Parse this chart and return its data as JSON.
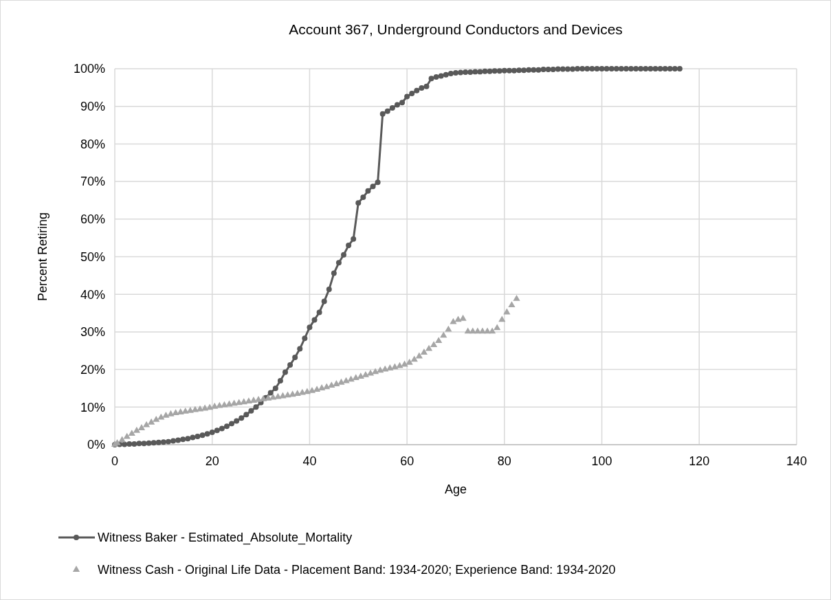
{
  "chart_data": {
    "type": "line",
    "title": "Account 367, Underground Conductors and Devices",
    "xlabel": "Age",
    "ylabel": "Percent Retiring",
    "xlim": [
      0,
      140
    ],
    "xticks": [
      0,
      20,
      40,
      60,
      80,
      100,
      120,
      140
    ],
    "ylim": [
      0,
      100
    ],
    "yticks": [
      {
        "value": 0,
        "label": "0%"
      },
      {
        "value": 10,
        "label": "10%"
      },
      {
        "value": 20,
        "label": "20%"
      },
      {
        "value": 30,
        "label": "30%"
      },
      {
        "value": 40,
        "label": "40%"
      },
      {
        "value": 50,
        "label": "50%"
      },
      {
        "value": 60,
        "label": "60%"
      },
      {
        "value": 70,
        "label": "70%"
      },
      {
        "value": 80,
        "label": "80%"
      },
      {
        "value": 90,
        "label": "90%"
      },
      {
        "value": 100,
        "label": "100%"
      }
    ],
    "grid": true,
    "legend": "bottom",
    "series": [
      {
        "name": "Witness Baker - Estimated_Absolute_Mortality",
        "type": "line",
        "marker": "circle",
        "line_style": "solid",
        "color": "#595959",
        "x": [
          0,
          1,
          2,
          3,
          4,
          5,
          6,
          7,
          8,
          9,
          10,
          11,
          12,
          13,
          14,
          15,
          16,
          17,
          18,
          19,
          20,
          21,
          22,
          23,
          24,
          25,
          26,
          27,
          28,
          29,
          30,
          31,
          32,
          33,
          34,
          35,
          36,
          37,
          38,
          39,
          40,
          41,
          42,
          43,
          44,
          45,
          46,
          47,
          48,
          49,
          50,
          51,
          52,
          53,
          54,
          55,
          56,
          57,
          58,
          59,
          60,
          61,
          62,
          63,
          64,
          65,
          66,
          67,
          68,
          69,
          70,
          71,
          72,
          73,
          74,
          75,
          76,
          77,
          78,
          79,
          80,
          81,
          82,
          83,
          84,
          85,
          86,
          87,
          88,
          89,
          90,
          91,
          92,
          93,
          94,
          95,
          96,
          97,
          98,
          99,
          100,
          101,
          102,
          103,
          104,
          105,
          106,
          107,
          108,
          109,
          110,
          111,
          112,
          113,
          114,
          115,
          116
        ],
        "values": [
          0,
          0.1,
          0.1,
          0.2,
          0.2,
          0.3,
          0.3,
          0.4,
          0.5,
          0.6,
          0.7,
          0.8,
          1.0,
          1.2,
          1.4,
          1.6,
          1.9,
          2.2,
          2.5,
          2.9,
          3.3,
          3.8,
          4.3,
          4.9,
          5.6,
          6.3,
          7.1,
          8.0,
          9.0,
          10.0,
          11.2,
          12.5,
          13.8,
          15.0,
          17.0,
          19.3,
          21.2,
          23.2,
          25.5,
          28.3,
          31.2,
          33.2,
          35.2,
          38.1,
          41.3,
          45.6,
          48.4,
          50.5,
          53.0,
          54.7,
          64.3,
          65.8,
          67.5,
          68.7,
          69.8,
          88.0,
          88.7,
          89.6,
          90.4,
          91.0,
          92.6,
          93.4,
          94.2,
          94.9,
          95.3,
          97.4,
          97.8,
          98.1,
          98.4,
          98.7,
          98.9,
          99.0,
          99.1,
          99.1,
          99.2,
          99.2,
          99.3,
          99.3,
          99.4,
          99.4,
          99.5,
          99.5,
          99.5,
          99.6,
          99.6,
          99.7,
          99.7,
          99.7,
          99.8,
          99.8,
          99.8,
          99.9,
          99.9,
          99.9,
          99.9,
          100,
          100,
          100,
          100,
          100,
          100,
          100,
          100,
          100,
          100,
          100,
          100,
          100,
          100,
          100,
          100,
          100,
          100,
          100,
          100,
          100,
          100
        ]
      },
      {
        "name": "Witness Cash - Original Life Data - Placement Band: 1934-2020; Experience Band: 1934-2020",
        "type": "scatter",
        "marker": "triangle",
        "color": "#a6a6a6",
        "x": [
          0,
          0.5,
          1.5,
          2.5,
          3.5,
          4.5,
          5.5,
          6.5,
          7.5,
          8.5,
          9.5,
          10.5,
          11.5,
          12.5,
          13.5,
          14.5,
          15.5,
          16.5,
          17.5,
          18.5,
          19.5,
          20.5,
          21.5,
          22.5,
          23.5,
          24.5,
          25.5,
          26.5,
          27.5,
          28.5,
          29.5,
          30.5,
          31.5,
          32.5,
          33.5,
          34.5,
          35.5,
          36.5,
          37.5,
          38.5,
          39.5,
          40.5,
          41.5,
          42.5,
          43.5,
          44.5,
          45.5,
          46.5,
          47.5,
          48.5,
          49.5,
          50.5,
          51.5,
          52.5,
          53.5,
          54.5,
          55.5,
          56.5,
          57.5,
          58.5,
          59.5,
          60.5,
          61.5,
          62.5,
          63.5,
          64.5,
          65.5,
          66.5,
          67.5,
          68.5,
          69.5,
          70.5,
          71.5,
          72.5,
          73.5,
          74.5,
          75.5,
          76.5,
          77.5,
          78.5,
          79.5,
          80.5,
          81.5,
          82.5
        ],
        "values": [
          0,
          0.4,
          1.2,
          2.1,
          2.9,
          3.7,
          4.4,
          5.2,
          5.9,
          6.6,
          7.2,
          7.7,
          8.1,
          8.4,
          8.6,
          8.8,
          9.0,
          9.2,
          9.4,
          9.6,
          9.8,
          10.1,
          10.3,
          10.5,
          10.7,
          10.9,
          11.1,
          11.3,
          11.5,
          11.7,
          11.9,
          12.1,
          12.3,
          12.5,
          12.7,
          12.9,
          13.1,
          13.3,
          13.5,
          13.8,
          14.0,
          14.3,
          14.6,
          15.0,
          15.3,
          15.7,
          16.1,
          16.5,
          16.9,
          17.3,
          17.7,
          18.1,
          18.5,
          18.9,
          19.3,
          19.7,
          20.0,
          20.3,
          20.6,
          20.9,
          21.3,
          21.8,
          22.6,
          23.5,
          24.5,
          25.5,
          26.5,
          27.6,
          29.0,
          30.6,
          32.6,
          33.2,
          33.5,
          30.1,
          30.1,
          30.1,
          30.1,
          30.1,
          30.1,
          31.0,
          33.2,
          35.2,
          37.1,
          38.8
        ]
      }
    ]
  }
}
